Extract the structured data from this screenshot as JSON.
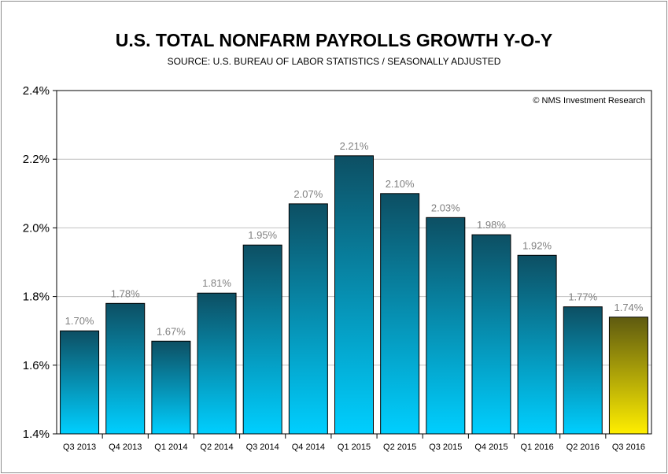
{
  "chart_data": {
    "type": "bar",
    "title": "U.S. TOTAL NONFARM PAYROLLS GROWTH Y-O-Y",
    "subtitle": "SOURCE: U.S. BUREAU OF LABOR STATISTICS / SEASONALLY ADJUSTED",
    "credit": "© NMS Investment Research",
    "categories": [
      "Q3 2013",
      "Q4 2013",
      "Q1 2014",
      "Q2 2014",
      "Q3 2014",
      "Q4 2014",
      "Q1 2015",
      "Q2 2015",
      "Q3 2015",
      "Q4 2015",
      "Q1 2016",
      "Q2 2016",
      "Q3 2016"
    ],
    "values": [
      1.7,
      1.78,
      1.67,
      1.81,
      1.95,
      2.07,
      2.21,
      2.1,
      2.03,
      1.98,
      1.92,
      1.77,
      1.74
    ],
    "value_labels": [
      "1.70%",
      "1.78%",
      "1.67%",
      "1.81%",
      "1.95%",
      "2.07%",
      "2.21%",
      "2.10%",
      "2.03%",
      "1.98%",
      "1.92%",
      "1.77%",
      "1.74%"
    ],
    "ylim": [
      1.4,
      2.4
    ],
    "yticks": [
      1.4,
      1.6,
      1.8,
      2.0,
      2.2,
      2.4
    ],
    "ytick_labels": [
      "1.4%",
      "1.6%",
      "1.8%",
      "2.0%",
      "2.2%",
      "2.4%"
    ],
    "grid": true,
    "colors": {
      "bar_top": "#0d4f63",
      "bar_bottom": "#00cfff",
      "highlight_top": "#5e5a10",
      "highlight_bottom": "#ffee00",
      "data_label": "#808080",
      "gridline": "#c0c0c0"
    },
    "highlight_index": 12
  }
}
